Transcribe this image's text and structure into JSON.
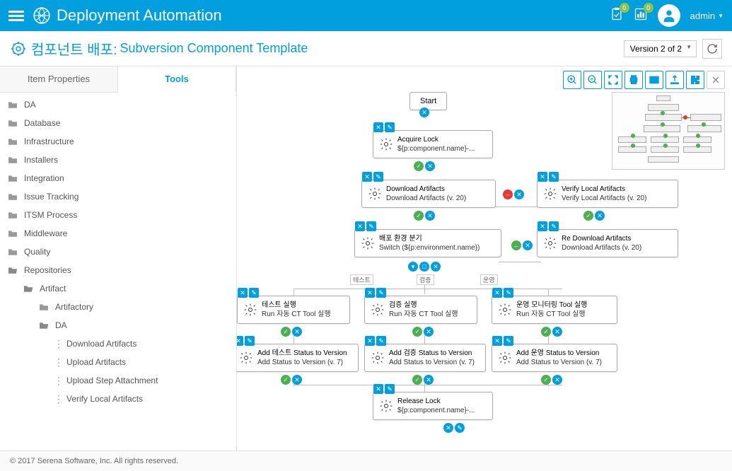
{
  "app": {
    "title": "Deployment Automation"
  },
  "header": {
    "badge1": "0",
    "badge2": "0",
    "user": "admin"
  },
  "page": {
    "title": "컴포넌트 배포:",
    "subtitle": "Subversion Component Template",
    "version": "Version 2 of 2"
  },
  "tabs": {
    "properties": "Item Properties",
    "tools": "Tools"
  },
  "tree": [
    {
      "label": "DA",
      "type": "folder",
      "indent": 0
    },
    {
      "label": "Database",
      "type": "folder",
      "indent": 0
    },
    {
      "label": "Infrastructure",
      "type": "folder",
      "indent": 0
    },
    {
      "label": "Installers",
      "type": "folder",
      "indent": 0
    },
    {
      "label": "Integration",
      "type": "folder",
      "indent": 0
    },
    {
      "label": "Issue Tracking",
      "type": "folder",
      "indent": 0
    },
    {
      "label": "ITSM Process",
      "type": "folder",
      "indent": 0
    },
    {
      "label": "Middleware",
      "type": "folder",
      "indent": 0
    },
    {
      "label": "Quality",
      "type": "folder",
      "indent": 0
    },
    {
      "label": "Repositories",
      "type": "folder-open",
      "indent": 0
    },
    {
      "label": "Artifact",
      "type": "folder-open",
      "indent": 1
    },
    {
      "label": "Artifactory",
      "type": "folder",
      "indent": 2
    },
    {
      "label": "DA",
      "type": "folder-open",
      "indent": 2
    },
    {
      "label": "Download Artifacts",
      "type": "leaf",
      "indent": 3
    },
    {
      "label": "Upload Artifacts",
      "type": "leaf",
      "indent": 3
    },
    {
      "label": "Upload Step Attachment",
      "type": "leaf",
      "indent": 3
    },
    {
      "label": "Verify Local Artifacts",
      "type": "leaf",
      "indent": 3
    }
  ],
  "nodes": {
    "start": "Start",
    "acquire": {
      "t": "Acquire Lock",
      "s": "${p:component.name}-..."
    },
    "download": {
      "t": "Download Artifacts",
      "s": "Download Artifacts (v. 20)"
    },
    "verify": {
      "t": "Verify Local Artifacts",
      "s": "Verify Local Artifacts (v. 20)"
    },
    "switch": {
      "t": "배포 환경 분기",
      "s": "Switch (${p:environment.name})"
    },
    "redownload": {
      "t": "Re Download Artifacts",
      "s": "Download Artifacts (v. 20)"
    },
    "test": {
      "t": "테스트 실행",
      "s": "Run 자동 CT Tool 실행"
    },
    "verify_run": {
      "t": "검증 실행",
      "s": "Run 자동 CT Tool 실행"
    },
    "monitor": {
      "t": "운영 모니터링 Tool 실행",
      "s": "Run 자동 CT Tool 실행"
    },
    "add_test": {
      "t": "Add 테스트 Status to Version",
      "s": "Add Status to Version (v. 7)"
    },
    "add_verify": {
      "t": "Add 검증 Status to Version",
      "s": "Add Status to Version (v. 7)"
    },
    "add_ops": {
      "t": "Add 운영 Status to Version",
      "s": "Add Status to Version (v. 7)"
    },
    "release": {
      "t": "Release Lock",
      "s": "${p:component.name}-..."
    }
  },
  "branches": {
    "test": "테스트",
    "verify": "검증",
    "ops": "운영"
  },
  "footer": "© 2017 Serena Software, Inc. All rights reserved."
}
